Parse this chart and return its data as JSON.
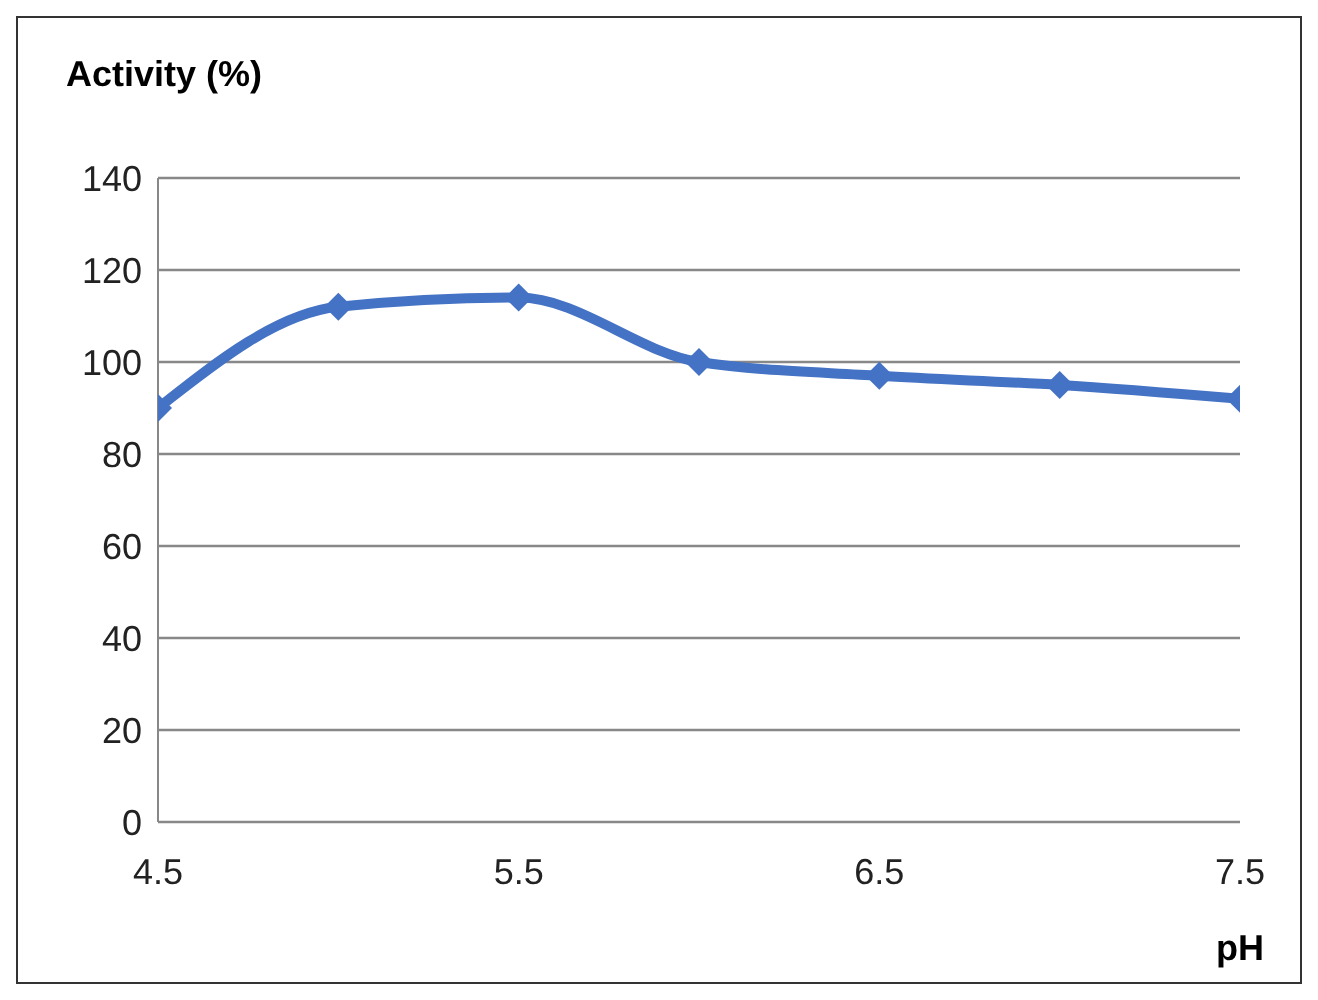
{
  "chart_data": {
    "type": "line",
    "ylabel": "Activity (%)",
    "xlabel": "pH",
    "x": [
      4.5,
      5,
      5.5,
      6,
      6.5,
      7,
      7.5
    ],
    "series": [
      {
        "color": "#4472c4",
        "values": [
          90,
          112,
          114,
          100,
          97,
          95,
          92
        ]
      }
    ],
    "xlim": [
      4.5,
      7.5
    ],
    "xticks": [
      4.5,
      5.5,
      6.5,
      7.5
    ],
    "ylim": [
      0,
      140
    ],
    "yticks": [
      0,
      20,
      40,
      60,
      80,
      100,
      120,
      140
    ],
    "grid": "y",
    "marker": "diamond",
    "line_style": "solid",
    "legend": false
  }
}
